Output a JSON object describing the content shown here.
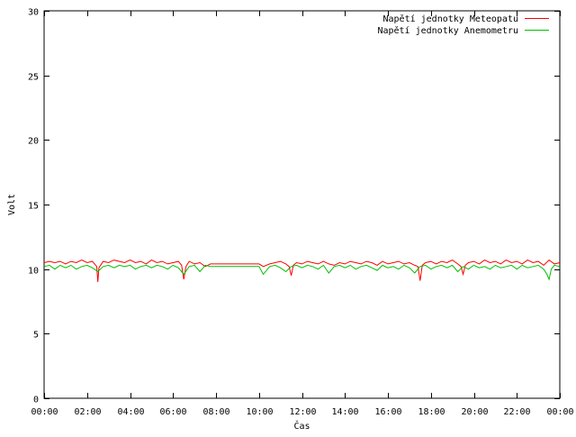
{
  "chart_data": {
    "type": "line",
    "xlabel": "Čas",
    "ylabel": "Volt",
    "xlim": [
      0,
      24
    ],
    "ylim": [
      0,
      30
    ],
    "grid": false,
    "legend_position": "top-right",
    "x_ticks": [
      {
        "value": 0,
        "label": "00:00"
      },
      {
        "value": 2,
        "label": "02:00"
      },
      {
        "value": 4,
        "label": "04:00"
      },
      {
        "value": 6,
        "label": "06:00"
      },
      {
        "value": 8,
        "label": "08:00"
      },
      {
        "value": 10,
        "label": "10:00"
      },
      {
        "value": 12,
        "label": "12:00"
      },
      {
        "value": 14,
        "label": "14:00"
      },
      {
        "value": 16,
        "label": "16:00"
      },
      {
        "value": 18,
        "label": "18:00"
      },
      {
        "value": 20,
        "label": "20:00"
      },
      {
        "value": 22,
        "label": "22:00"
      },
      {
        "value": 24,
        "label": "00:00"
      }
    ],
    "y_ticks": [
      {
        "value": 0,
        "label": "0"
      },
      {
        "value": 5,
        "label": "5"
      },
      {
        "value": 10,
        "label": "10"
      },
      {
        "value": 15,
        "label": "15"
      },
      {
        "value": 20,
        "label": "20"
      },
      {
        "value": 25,
        "label": "25"
      },
      {
        "value": 30,
        "label": "30"
      }
    ],
    "series": [
      {
        "name": "Napětí jednotky Meteopatu",
        "color": "#ff0000",
        "x": [
          0,
          0.25,
          0.5,
          0.75,
          1.0,
          1.25,
          1.5,
          1.75,
          2.0,
          2.25,
          2.45,
          2.5,
          2.55,
          2.75,
          3.0,
          3.25,
          3.5,
          3.75,
          4.0,
          4.25,
          4.5,
          4.75,
          5.0,
          5.25,
          5.5,
          5.75,
          6.0,
          6.25,
          6.4,
          6.5,
          6.6,
          6.75,
          7.0,
          7.25,
          7.5,
          7.75,
          8.0,
          8.5,
          9.0,
          9.5,
          10.0,
          10.2,
          10.5,
          10.75,
          11.0,
          11.25,
          11.4,
          11.5,
          11.6,
          11.75,
          12.0,
          12.25,
          12.5,
          12.75,
          13.0,
          13.25,
          13.5,
          13.75,
          14.0,
          14.25,
          14.5,
          14.75,
          15.0,
          15.25,
          15.5,
          15.75,
          16.0,
          16.25,
          16.5,
          16.75,
          17.0,
          17.25,
          17.4,
          17.5,
          17.6,
          17.75,
          18.0,
          18.25,
          18.5,
          18.75,
          19.0,
          19.25,
          19.4,
          19.5,
          19.6,
          19.75,
          20.0,
          20.25,
          20.5,
          20.75,
          21.0,
          21.25,
          21.5,
          21.75,
          22.0,
          22.25,
          22.5,
          22.75,
          23.0,
          23.25,
          23.5,
          23.75,
          24.0
        ],
        "values": [
          10.5,
          10.6,
          10.5,
          10.6,
          10.4,
          10.6,
          10.5,
          10.7,
          10.5,
          10.6,
          10.2,
          9.0,
          10.1,
          10.6,
          10.5,
          10.7,
          10.6,
          10.5,
          10.7,
          10.5,
          10.6,
          10.4,
          10.7,
          10.5,
          10.6,
          10.4,
          10.5,
          10.6,
          10.3,
          9.2,
          10.2,
          10.6,
          10.4,
          10.5,
          10.2,
          10.4,
          10.4,
          10.4,
          10.4,
          10.4,
          10.4,
          10.2,
          10.4,
          10.5,
          10.6,
          10.4,
          10.2,
          9.5,
          10.3,
          10.5,
          10.4,
          10.6,
          10.5,
          10.4,
          10.6,
          10.4,
          10.3,
          10.5,
          10.4,
          10.6,
          10.5,
          10.4,
          10.6,
          10.5,
          10.3,
          10.6,
          10.4,
          10.5,
          10.6,
          10.4,
          10.5,
          10.3,
          10.2,
          9.1,
          10.3,
          10.5,
          10.6,
          10.4,
          10.6,
          10.5,
          10.7,
          10.4,
          10.2,
          9.6,
          10.3,
          10.5,
          10.6,
          10.4,
          10.7,
          10.5,
          10.6,
          10.4,
          10.7,
          10.5,
          10.6,
          10.4,
          10.7,
          10.5,
          10.6,
          10.3,
          10.7,
          10.4,
          10.5
        ]
      },
      {
        "name": "Napětí jednotky Anemometru",
        "color": "#00c000",
        "x": [
          0,
          0.25,
          0.5,
          0.75,
          1.0,
          1.25,
          1.5,
          1.75,
          2.0,
          2.25,
          2.5,
          2.75,
          3.0,
          3.25,
          3.5,
          3.75,
          4.0,
          4.25,
          4.5,
          4.75,
          5.0,
          5.25,
          5.5,
          5.75,
          6.0,
          6.25,
          6.5,
          6.75,
          7.0,
          7.25,
          7.5,
          7.75,
          8.0,
          8.5,
          9.0,
          9.5,
          10.0,
          10.2,
          10.5,
          10.75,
          11.0,
          11.25,
          11.5,
          11.75,
          12.0,
          12.25,
          12.5,
          12.75,
          13.0,
          13.25,
          13.5,
          13.75,
          14.0,
          14.25,
          14.5,
          14.75,
          15.0,
          15.25,
          15.5,
          15.75,
          16.0,
          16.25,
          16.5,
          16.75,
          17.0,
          17.25,
          17.5,
          17.75,
          18.0,
          18.25,
          18.5,
          18.75,
          19.0,
          19.25,
          19.5,
          19.75,
          20.0,
          20.25,
          20.5,
          20.75,
          21.0,
          21.25,
          21.5,
          21.75,
          22.0,
          22.25,
          22.5,
          22.75,
          23.0,
          23.25,
          23.4,
          23.5,
          23.6,
          23.75,
          24.0
        ],
        "values": [
          10.2,
          10.3,
          10.0,
          10.3,
          10.1,
          10.3,
          10.0,
          10.2,
          10.3,
          10.1,
          9.8,
          10.2,
          10.3,
          10.1,
          10.3,
          10.2,
          10.3,
          10.0,
          10.2,
          10.3,
          10.1,
          10.3,
          10.2,
          10.0,
          10.3,
          10.1,
          9.6,
          10.2,
          10.3,
          9.8,
          10.3,
          10.2,
          10.2,
          10.2,
          10.2,
          10.2,
          10.2,
          9.6,
          10.2,
          10.3,
          10.1,
          9.8,
          10.2,
          10.3,
          10.1,
          10.3,
          10.2,
          10.0,
          10.3,
          9.7,
          10.2,
          10.3,
          10.1,
          10.3,
          10.0,
          10.2,
          10.3,
          10.1,
          9.9,
          10.3,
          10.1,
          10.2,
          10.0,
          10.3,
          10.1,
          9.7,
          10.2,
          10.3,
          10.0,
          10.2,
          10.3,
          10.1,
          10.3,
          9.8,
          10.2,
          10.0,
          10.3,
          10.1,
          10.2,
          10.0,
          10.3,
          10.1,
          10.2,
          10.3,
          10.0,
          10.3,
          10.1,
          10.2,
          10.3,
          10.0,
          9.6,
          9.2,
          10.0,
          10.3,
          10.2
        ]
      }
    ]
  }
}
